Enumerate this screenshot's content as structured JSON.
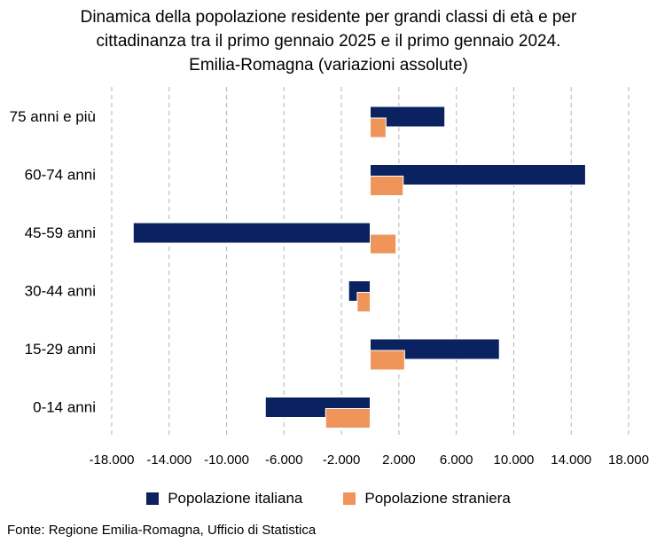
{
  "chart_data": {
    "type": "bar",
    "orientation": "horizontal",
    "title": [
      "Dinamica della popolazione residente per grandi classi di età e per",
      "cittadinanza tra il primo gennaio 2025 e il primo gennaio 2024.",
      "Emilia-Romagna (variazioni assolute)"
    ],
    "categories": [
      "75 anni e più",
      "60-74 anni",
      "45-59 anni",
      "30-44 anni",
      "15-29 anni",
      "0-14 anni"
    ],
    "series": [
      {
        "name": "Popolazione italiana",
        "color": "#0b2260",
        "values": [
          5200,
          15000,
          -16500,
          -1500,
          9000,
          -7300
        ]
      },
      {
        "name": "Popolazione straniera",
        "color": "#f0955a",
        "values": [
          1100,
          2300,
          1800,
          -900,
          2400,
          -3100
        ]
      }
    ],
    "xlim": [
      -18000,
      18000
    ],
    "xticks": [
      -18000,
      -14000,
      -10000,
      -6000,
      -2000,
      2000,
      6000,
      10000,
      14000,
      18000
    ],
    "xtick_labels": [
      "-18.000",
      "-14.000",
      "-10.000",
      "-6.000",
      "-2.000",
      "2.000",
      "6.000",
      "10.000",
      "14.000",
      "18.000"
    ],
    "grid": "vertical dashed",
    "legend_position": "bottom",
    "source": "Fonte: Regione Emilia-Romagna, Ufficio di Statistica"
  }
}
